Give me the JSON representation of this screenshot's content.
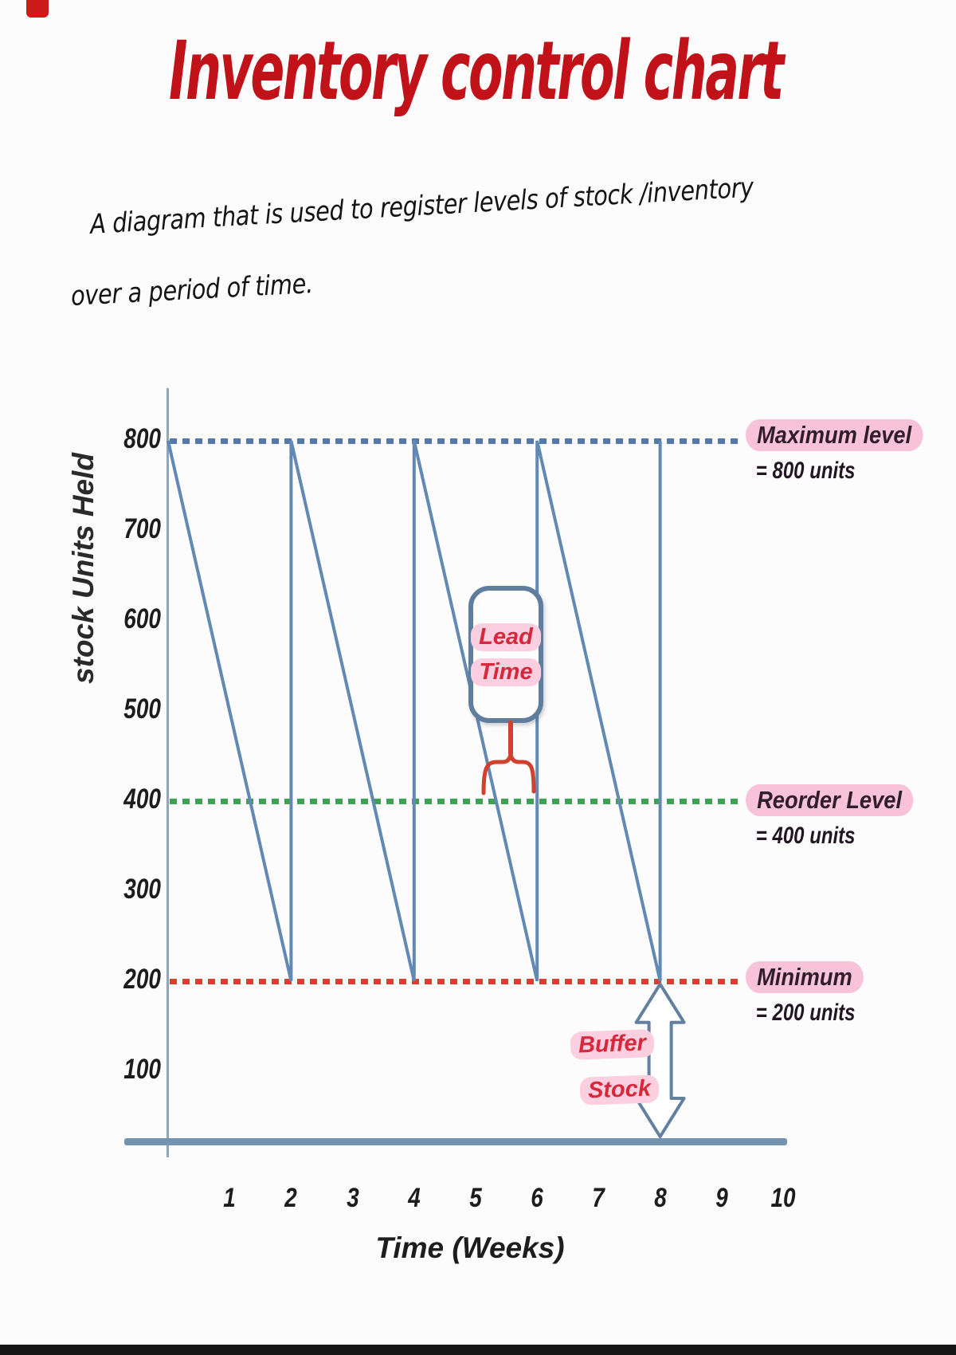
{
  "page": {
    "title": "Inventory control chart",
    "description_line1": "A diagram that is used to register levels of stock /inventory",
    "description_line2": "over a period of time."
  },
  "chart_data": {
    "type": "line",
    "title": "Inventory control chart",
    "xlabel": "Time (Weeks)",
    "ylabel": "stock Units Held",
    "xlim": [
      0,
      10
    ],
    "ylim": [
      0,
      800
    ],
    "x_ticks": [
      1,
      2,
      3,
      4,
      5,
      6,
      7,
      8,
      9,
      10
    ],
    "y_ticks": [
      800,
      700,
      600,
      500,
      400,
      300,
      200,
      100
    ],
    "grid": false,
    "legend": false,
    "series": [
      {
        "name": "Stock units held (sawtooth replenishment cycle)",
        "color": "#6189b4",
        "points": [
          [
            0,
            800
          ],
          [
            2,
            200
          ],
          [
            2,
            800
          ],
          [
            4,
            200
          ],
          [
            4,
            800
          ],
          [
            6,
            200
          ],
          [
            6,
            800
          ],
          [
            8,
            200
          ],
          [
            8,
            800
          ]
        ]
      }
    ],
    "reference_lines": [
      {
        "id": "maximum",
        "label": "Maximum level",
        "value_label": "= 800 units",
        "value": 800,
        "color": "#5279a9",
        "style": "dotted"
      },
      {
        "id": "reorder",
        "label": "Reorder Level",
        "value_label": "= 400 units",
        "value": 400,
        "color": "#3ea152",
        "style": "dotted"
      },
      {
        "id": "minimum",
        "label": "Minimum",
        "value_label": "= 200 units",
        "value": 200,
        "color": "#d6402f",
        "style": "dotted"
      }
    ],
    "annotations": {
      "lead_time": {
        "line1": "Lead",
        "line2": "Time"
      },
      "buffer_stock": {
        "line1": "Buffer",
        "line2": "Stock"
      }
    }
  },
  "colors": {
    "title_red": "#c1121a",
    "handwriting_black": "#141414",
    "stock_line_blue": "#6189b4",
    "axis_blue_gray": "#7493b1",
    "callout_border": "#5f7d9c",
    "highlight_pink": "#f8c3d9",
    "annotation_red": "#d6283a",
    "brace_red": "#d2402e"
  }
}
